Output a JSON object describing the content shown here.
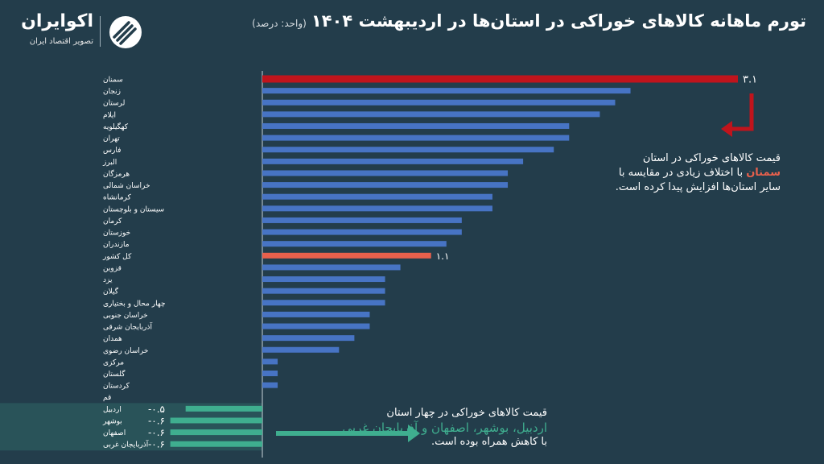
{
  "header": {
    "title": "تورم ماهانه کالاهای خوراکی در استان‌ها در اردیبهشت ۱۴۰۴",
    "unit": "(واحد: درصد)"
  },
  "logo": {
    "name": "اکوایران",
    "tagline": "تصویر اقتصاد ایران"
  },
  "annotations": {
    "semnan": {
      "before": "قیمت کالاهای خوراکی در استان ",
      "highlight": "سمنان",
      "after": " با اختلاف زیادی در مقایسه با سایر استان‌ها افزایش پیدا کرده است."
    },
    "negative": {
      "line1": "قیمت کالاهای خوراکی در چهار استان",
      "highlight": "اردبیل، بوشهر، اصفهان و آذربایجان غربی",
      "line3": "با کاهش همراه بوده است."
    }
  },
  "colors": {
    "background": "#233d4b",
    "bar": "#4774c4",
    "highlight_max": "#c0141c",
    "national": "#e8604c",
    "negative": "#3fae8f"
  },
  "chart_data": {
    "type": "bar",
    "orientation": "horizontal",
    "categories": [
      "سمنان",
      "زنجان",
      "لرستان",
      "ایلام",
      "کهگیلویه",
      "تهران",
      "فارس",
      "البرز",
      "هرمزگان",
      "خراسان شمالی",
      "کرمانشاه",
      "سیستان و بلوچستان",
      "کرمان",
      "خوزستان",
      "مازندران",
      "کل کشور",
      "قزوین",
      "یزد",
      "گیلان",
      "چهار محال و بختیاری",
      "خراسان جنوبی",
      "آذربایجان شرقی",
      "همدان",
      "خراسان رضوی",
      "مرکزی",
      "گلستان",
      "کردستان",
      "قم",
      "اردبیل",
      "بوشهر",
      "اصفهان",
      "آذربایجان غربی"
    ],
    "values": [
      3.1,
      2.4,
      2.3,
      2.2,
      2.0,
      2.0,
      1.9,
      1.7,
      1.6,
      1.6,
      1.5,
      1.5,
      1.3,
      1.3,
      1.2,
      1.1,
      0.9,
      0.8,
      0.8,
      0.8,
      0.7,
      0.7,
      0.6,
      0.5,
      0.1,
      0.1,
      0.1,
      0.0,
      -0.5,
      -0.6,
      -0.6,
      -0.6
    ],
    "data_labels": {
      "0": "۳.۱",
      "15": "۱.۱",
      "28": "-۰.۵",
      "29": "-۰.۶",
      "30": "-۰.۶",
      "31": "-۰.۶"
    },
    "xlim": [
      -0.6,
      3.1
    ],
    "grid": false,
    "legend": "none"
  }
}
